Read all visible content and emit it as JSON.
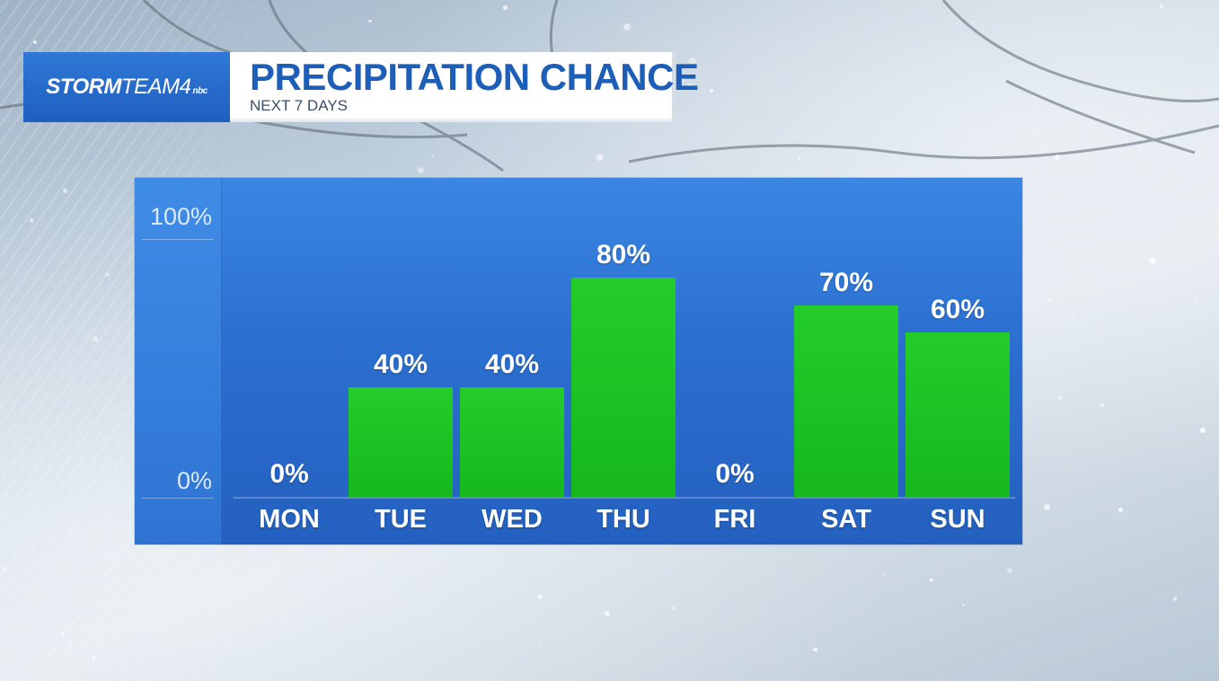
{
  "header": {
    "logo_main": "STORM",
    "logo_thin": "TEAM4",
    "logo_mini": "nbc",
    "title": "PRECIPITATION CHANCE",
    "subtitle": "NEXT 7 DAYS"
  },
  "colors": {
    "bar": "#1ec125",
    "panel": "#2b6fd0",
    "title_text": "#1d5fb8"
  },
  "chart_data": {
    "type": "bar",
    "title": "PRECIPITATION CHANCE",
    "subtitle": "NEXT 7 DAYS",
    "categories": [
      "MON",
      "TUE",
      "WED",
      "THU",
      "FRI",
      "SAT",
      "SUN"
    ],
    "values": [
      0,
      40,
      40,
      80,
      0,
      70,
      60
    ],
    "value_labels": [
      "0%",
      "40%",
      "40%",
      "80%",
      "0%",
      "70%",
      "60%"
    ],
    "ylim": [
      0,
      100
    ],
    "y_ticks": [
      "100%",
      "0%"
    ],
    "xlabel": "",
    "ylabel": "",
    "grid": false,
    "legend": "none"
  }
}
